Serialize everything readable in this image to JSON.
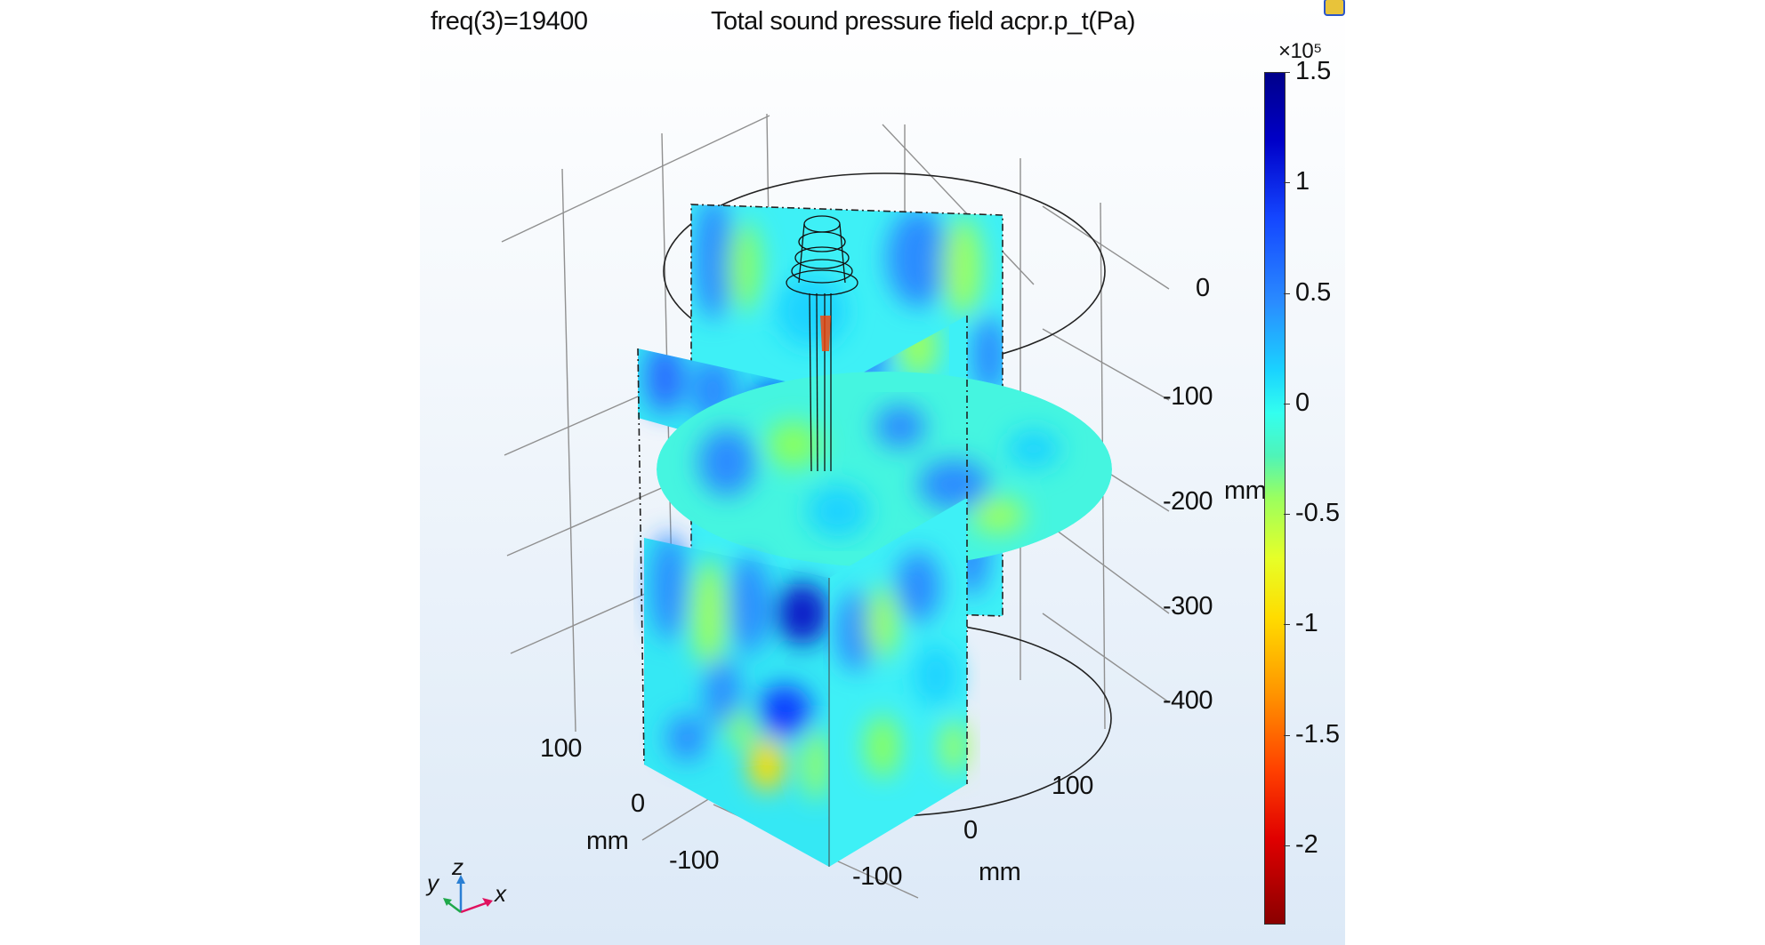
{
  "header": {
    "freq_label": "freq(3)=19400",
    "plot_title": "Total sound pressure field acpr.p_t(Pa)"
  },
  "z_axis": {
    "unit": "mm",
    "ticks": [
      "0",
      "-100",
      "-200",
      "-300",
      "-400"
    ]
  },
  "y_axis": {
    "unit": "mm",
    "ticks": [
      "100",
      "0",
      "-100"
    ]
  },
  "x_axis": {
    "unit": "mm",
    "ticks": [
      "100",
      "0",
      "-100"
    ]
  },
  "colorbar": {
    "multiplier": "×10⁵",
    "ticks": [
      "1.5",
      "1",
      "0.5",
      "0",
      "-0.5",
      "-1",
      "-1.5",
      "-2"
    ],
    "range": [
      -2.35,
      1.5
    ]
  },
  "triad": {
    "y": "y",
    "z": "z",
    "x": "x"
  },
  "colors": {
    "x_axis": "#e0115f",
    "y_axis": "#1fa84a",
    "z_axis": "#2a7fd4"
  },
  "icons": {
    "corner": "plot-settings-icon"
  }
}
